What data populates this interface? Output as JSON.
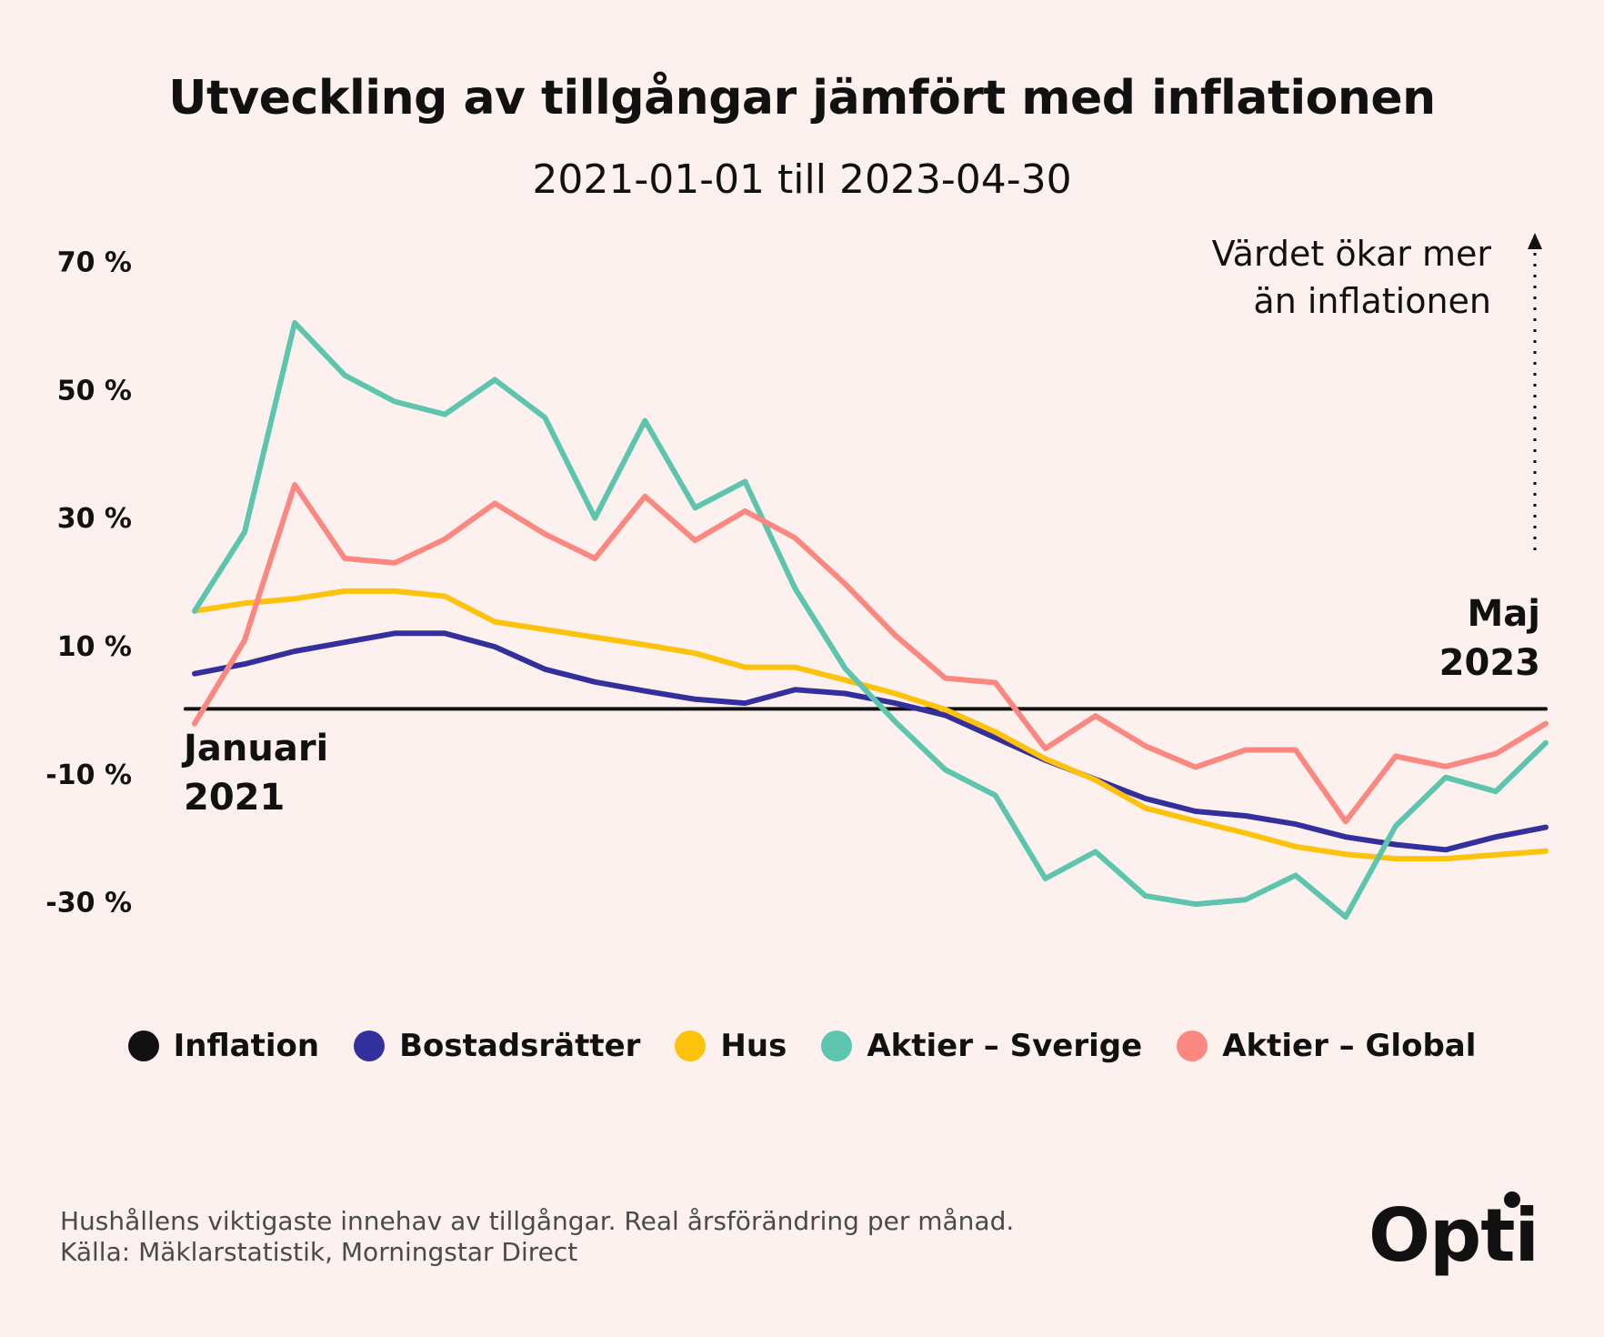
{
  "title": "Utveckling av tillgångar jämfört med inflationen",
  "subtitle": "2021-01-01 till 2023-04-30",
  "annotation": {
    "line1": "Värdet ökar mer",
    "line2": "än inflationen"
  },
  "start_label": {
    "line1": "Januari",
    "line2": "2021"
  },
  "end_label": {
    "line1": "Maj",
    "line2": "2023"
  },
  "footnote": {
    "line1": "Hushållens viktigaste innehav av tillgångar. Real årsförändring per månad.",
    "line2": "Källa: Mäklarstatistik, Morningstar Direct"
  },
  "logo": {
    "text": "Opti"
  },
  "legend": [
    {
      "label": "Inflation",
      "color": "#111111"
    },
    {
      "label": "Bostadsrätter",
      "color": "#33309e"
    },
    {
      "label": "Hus",
      "color": "#fdc20c"
    },
    {
      "label": "Aktier – Sverige",
      "color": "#5dc5ad"
    },
    {
      "label": "Aktier – Global",
      "color": "#fa8880"
    }
  ],
  "chart_data": {
    "type": "line",
    "x_start": "Januari 2021",
    "x_end": "Maj 2023",
    "y_ticks": [
      "70 %",
      "50 %",
      "30 %",
      "10 %",
      "-10 %",
      "-30 %"
    ],
    "y_tick_values": [
      70,
      50,
      30,
      10,
      -10,
      -30
    ],
    "ylim": [
      -36,
      72
    ],
    "series": [
      {
        "name": "Inflation",
        "color": "#111111",
        "values": [
          0,
          0,
          0,
          0,
          0,
          0,
          0,
          0,
          0,
          0,
          0,
          0,
          0,
          0,
          0,
          0,
          0,
          0,
          0,
          0,
          0,
          0,
          0,
          0,
          0,
          0,
          0,
          0,
          0
        ]
      },
      {
        "name": "Bostadsrätter",
        "color": "#33309e",
        "values": [
          5.5,
          7,
          9,
          10.4,
          11.8,
          11.8,
          9.7,
          6.2,
          4.2,
          2.8,
          1.5,
          0.9,
          3,
          2.4,
          0.9,
          -1,
          -4.5,
          -8,
          -11,
          -14,
          -16,
          -16.7,
          -18,
          -20,
          -21.2,
          -22,
          -20,
          -18.5
        ]
      },
      {
        "name": "Hus",
        "color": "#fdc20c",
        "values": [
          15.3,
          16.5,
          17.2,
          18.4,
          18.4,
          17.6,
          13.6,
          12.4,
          11.2,
          10,
          8.7,
          6.5,
          6.5,
          4.5,
          2.4,
          -0.1,
          -3.6,
          -7.8,
          -11.1,
          -15.5,
          -17.5,
          -19.4,
          -21.5,
          -22.7,
          -23.4,
          -23.4,
          -22.8,
          -22.2
        ]
      },
      {
        "name": "Aktier – Sverige",
        "color": "#5dc5ad",
        "values": [
          15.3,
          27.6,
          60.3,
          52.1,
          48,
          46,
          51.4,
          45.5,
          29.8,
          45,
          31.4,
          35.5,
          18.8,
          6.3,
          -2,
          -9.5,
          -13.5,
          -26.5,
          -22.3,
          -29.2,
          -30.5,
          -29.8,
          -26,
          -32.5,
          -18.3,
          -10.7,
          -12.9,
          -5.3
        ]
      },
      {
        "name": "Aktier – Global",
        "color": "#fa8880",
        "values": [
          -2.3,
          10.7,
          35,
          23.5,
          22.8,
          26.5,
          32.1,
          27.3,
          23.5,
          33.2,
          26.3,
          30.9,
          26.7,
          19.5,
          11.5,
          4.8,
          4.1,
          -6.2,
          -1.1,
          -5.8,
          -9.1,
          -6.4,
          -6.4,
          -17.6,
          -7.4,
          -9,
          -7,
          -2.3
        ]
      }
    ]
  }
}
